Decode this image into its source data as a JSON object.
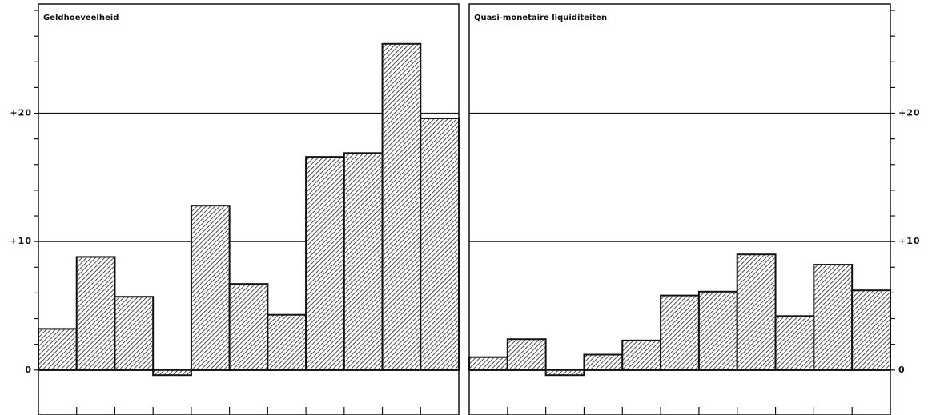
{
  "chart_data": [
    {
      "type": "bar",
      "title": "Geldhoeveelheid",
      "xlabel": "",
      "ylabel": "",
      "ylim": [
        -3.5,
        28.5
      ],
      "yticks": [
        0,
        10,
        20
      ],
      "ytick_labels": [
        "0",
        "+10",
        "+20"
      ],
      "grid": true,
      "pattern": "diagonal-hatch",
      "values": [
        3.2,
        8.8,
        5.7,
        -0.4,
        12.8,
        6.7,
        4.3,
        16.6,
        16.9,
        25.4,
        19.6
      ]
    },
    {
      "type": "bar",
      "title": "Quasi-monetaire liquiditeiten",
      "xlabel": "",
      "ylabel": "",
      "ylim": [
        -3.5,
        28.5
      ],
      "yticks": [
        0,
        10,
        20
      ],
      "ytick_labels": [
        "0",
        "+10",
        "+20"
      ],
      "grid": true,
      "pattern": "diagonal-hatch",
      "values": [
        1.0,
        2.4,
        -0.4,
        1.2,
        2.3,
        5.8,
        6.1,
        9.0,
        4.2,
        8.2,
        6.2
      ]
    }
  ]
}
